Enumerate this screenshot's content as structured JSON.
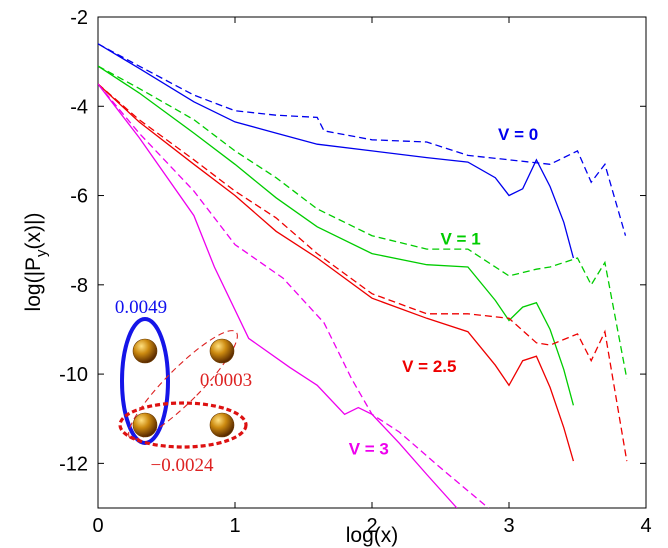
{
  "chart_data": {
    "type": "line",
    "title": "",
    "xlabel": "log(x)",
    "ylabel_parts": [
      "log(|P",
      "y",
      "(x)|)"
    ],
    "xlim": [
      0,
      4
    ],
    "ylim": [
      -13,
      -2
    ],
    "x_ticks": [
      "0",
      "1",
      "2",
      "3",
      "4"
    ],
    "y_ticks": [
      "-2",
      "-4",
      "-6",
      "-8",
      "-10",
      "-12"
    ],
    "x_tick_values": [
      0,
      1,
      2,
      3,
      4
    ],
    "y_tick_values": [
      -2,
      -4,
      -6,
      -8,
      -10,
      -12
    ],
    "series": [
      {
        "name": "V = 0",
        "color": "#0000ee",
        "style": "solid",
        "x": [
          0,
          0.3,
          0.7,
          1.0,
          1.3,
          1.6,
          2.0,
          2.4,
          2.7,
          2.9,
          3.0,
          3.1,
          3.2,
          3.3,
          3.4,
          3.47
        ],
        "y": [
          -2.6,
          -3.15,
          -3.9,
          -4.35,
          -4.6,
          -4.85,
          -5.0,
          -5.15,
          -5.25,
          -5.6,
          -6.0,
          -5.85,
          -5.2,
          -5.8,
          -6.6,
          -7.4
        ]
      },
      {
        "name": "V = 0",
        "color": "#0000ee",
        "style": "dashed",
        "x": [
          0,
          0.3,
          0.7,
          1.0,
          1.3,
          1.6,
          1.65,
          2.0,
          2.4,
          2.7,
          3.0,
          3.3,
          3.5,
          3.6,
          3.7,
          3.85
        ],
        "y": [
          -2.6,
          -3.1,
          -3.75,
          -4.1,
          -4.2,
          -4.25,
          -4.55,
          -4.75,
          -4.8,
          -5.1,
          -5.2,
          -5.3,
          -5.0,
          -5.7,
          -5.3,
          -6.9
        ]
      },
      {
        "name": "V = 1",
        "color": "#00cc00",
        "style": "solid",
        "x": [
          0,
          0.3,
          0.7,
          1.0,
          1.3,
          1.6,
          2.0,
          2.4,
          2.7,
          2.9,
          3.0,
          3.1,
          3.2,
          3.3,
          3.4,
          3.47
        ],
        "y": [
          -3.1,
          -3.7,
          -4.6,
          -5.3,
          -6.05,
          -6.7,
          -7.3,
          -7.55,
          -7.6,
          -8.35,
          -8.8,
          -8.5,
          -8.4,
          -9.0,
          -9.9,
          -10.7
        ]
      },
      {
        "name": "V = 1",
        "color": "#00cc00",
        "style": "dashed",
        "x": [
          0,
          0.3,
          0.7,
          1.0,
          1.3,
          1.6,
          2.0,
          2.4,
          2.7,
          3.0,
          3.2,
          3.3,
          3.5,
          3.6,
          3.7,
          3.86
        ],
        "y": [
          -3.1,
          -3.6,
          -4.3,
          -5.0,
          -5.6,
          -6.3,
          -6.9,
          -7.2,
          -7.2,
          -7.8,
          -7.65,
          -7.6,
          -7.4,
          -8.0,
          -7.5,
          -10.1
        ]
      },
      {
        "name": "V = 2.5",
        "color": "#ee0000",
        "style": "solid",
        "x": [
          0,
          0.3,
          0.7,
          1.0,
          1.3,
          1.6,
          2.0,
          2.4,
          2.7,
          2.9,
          3.0,
          3.1,
          3.2,
          3.3,
          3.4,
          3.47
        ],
        "y": [
          -3.5,
          -4.35,
          -5.3,
          -6.0,
          -6.8,
          -7.4,
          -8.3,
          -8.75,
          -9.05,
          -9.8,
          -10.25,
          -9.7,
          -9.6,
          -10.3,
          -11.2,
          -11.95
        ]
      },
      {
        "name": "V = 2.5",
        "color": "#ee0000",
        "style": "dashed",
        "x": [
          0,
          0.3,
          0.7,
          1.0,
          1.3,
          1.6,
          2.0,
          2.4,
          2.7,
          3.0,
          3.2,
          3.3,
          3.5,
          3.6,
          3.7,
          3.86
        ],
        "y": [
          -3.5,
          -4.3,
          -5.2,
          -5.9,
          -6.5,
          -7.3,
          -8.2,
          -8.65,
          -8.65,
          -8.75,
          -9.3,
          -9.35,
          -9.1,
          -9.7,
          -9.05,
          -11.95
        ]
      },
      {
        "name": "V = 3",
        "color": "#ee00ee",
        "style": "solid",
        "x": [
          0,
          0.3,
          0.7,
          0.85,
          1.1,
          1.4,
          1.6,
          1.8,
          1.9,
          2.0,
          2.2,
          2.4,
          2.62
        ],
        "y": [
          -3.5,
          -4.7,
          -6.45,
          -7.6,
          -9.2,
          -9.85,
          -10.25,
          -10.9,
          -10.75,
          -10.9,
          -11.55,
          -12.25,
          -13.0
        ]
      },
      {
        "name": "V = 3",
        "color": "#ee00ee",
        "style": "dashed",
        "x": [
          0,
          0.3,
          0.7,
          1.0,
          1.35,
          1.65,
          1.85,
          2.0,
          2.2,
          2.5,
          2.85
        ],
        "y": [
          -3.5,
          -4.6,
          -5.9,
          -7.1,
          -7.85,
          -8.85,
          -10.1,
          -10.9,
          -11.3,
          -12.1,
          -13.0
        ]
      }
    ],
    "labels": [
      {
        "text": "V = 0",
        "color": "#0000ee",
        "x": 2.92,
        "y": -4.75
      },
      {
        "text": "V = 1",
        "color": "#00cc00",
        "x": 2.5,
        "y": -7.1
      },
      {
        "text": "V = 2.5",
        "color": "#ee0000",
        "x": 2.22,
        "y": -9.95
      },
      {
        "text": "V = 3",
        "color": "#ee00ee",
        "x": 1.83,
        "y": -11.8
      }
    ],
    "inset": {
      "values": [
        "0.0049",
        "0.0003",
        "−0.0024"
      ],
      "colors": [
        "#1010ee",
        "#dd2222",
        "#dd2222"
      ],
      "sphere_color": "#b8860b"
    }
  }
}
